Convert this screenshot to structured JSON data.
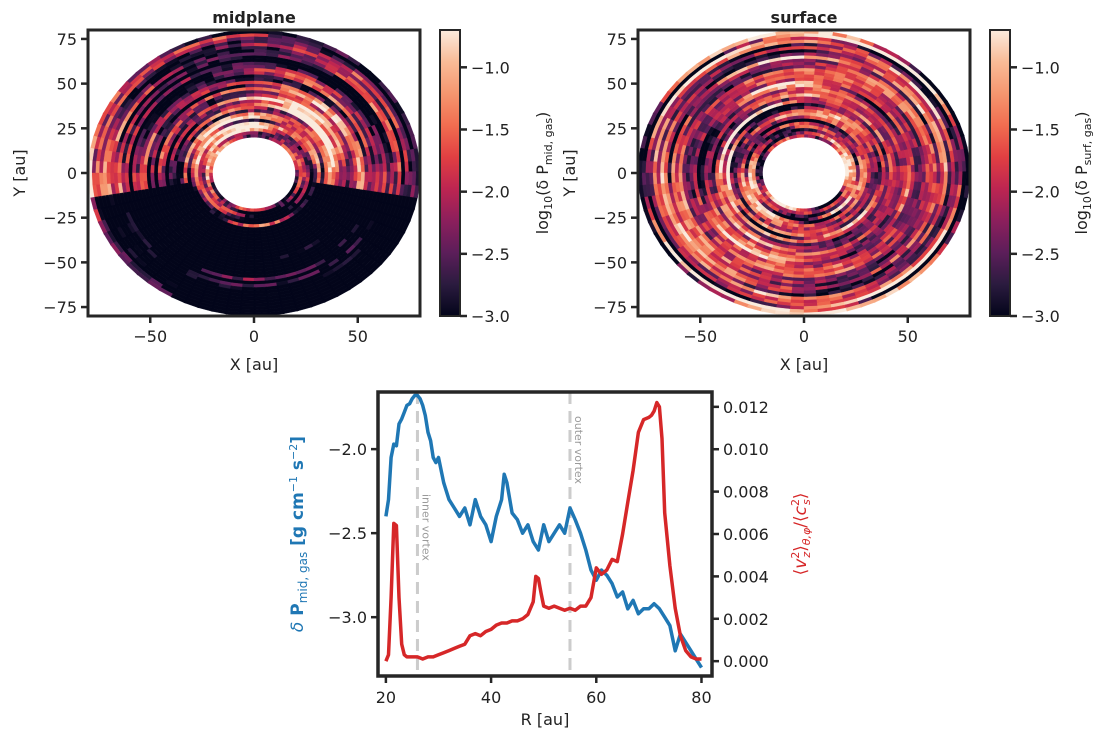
{
  "colors": {
    "blue": "#1f77b4",
    "red": "#d62728",
    "vortex_line": "#cccccc",
    "frame": "#262626",
    "colormap": [
      "#03051a",
      "#2b1b3f",
      "#5c1e5a",
      "#8c1f5c",
      "#bd2551",
      "#e13f42",
      "#f16d50",
      "#f5966f",
      "#f8bb97",
      "#faebdd"
    ]
  },
  "chart_data": [
    {
      "type": "heatmap",
      "title": "midplane",
      "xlabel": "X [au]",
      "ylabel": "Y [au]",
      "xlim": [
        -80,
        80
      ],
      "ylim": [
        -80,
        80
      ],
      "xticks": [
        "−50",
        "0",
        "50"
      ],
      "yticks": [
        "75",
        "50",
        "25",
        "0",
        "−25",
        "−50",
        "−75"
      ],
      "radius_range_au": [
        20,
        80
      ],
      "colorbar": {
        "label_base": "log",
        "label_sub": "10",
        "label_body": "(δ P",
        "label_field_sub": "mid, gas",
        "label_end": ")",
        "range": [
          -3.0,
          -0.7
        ],
        "ticks": [
          "−1.0",
          "−1.5",
          "−2.0",
          "−2.5",
          "−3.0"
        ],
        "tick_values": [
          -1.0,
          -1.5,
          -2.0,
          -2.5,
          -3.0
        ]
      }
    },
    {
      "type": "heatmap",
      "title": "surface",
      "xlabel": "X [au]",
      "ylabel": "Y [au]",
      "xlim": [
        -80,
        80
      ],
      "ylim": [
        -80,
        80
      ],
      "xticks": [
        "−50",
        "0",
        "50"
      ],
      "yticks": [
        "75",
        "50",
        "25",
        "0",
        "−25",
        "−50",
        "−75"
      ],
      "radius_range_au": [
        20,
        80
      ],
      "colorbar": {
        "label_base": "log",
        "label_sub": "10",
        "label_body": "(δ P",
        "label_field_sub": "surf, gas",
        "label_end": ")",
        "range": [
          -3.0,
          -0.7
        ],
        "ticks": [
          "−1.0",
          "−1.5",
          "−2.0",
          "−2.5",
          "−3.0"
        ],
        "tick_values": [
          -1.0,
          -1.5,
          -2.0,
          -2.5,
          -3.0
        ]
      }
    },
    {
      "type": "line",
      "xlabel": "R [au]",
      "xlim": [
        18.5,
        82
      ],
      "xticks": [
        20,
        40,
        60,
        80
      ],
      "y_left": {
        "label_sym": "δ",
        "label_p": "P",
        "label_sub": "mid, gas",
        "label_units": "[g cm",
        "label_exp1": "−1",
        "label_s": "s",
        "label_exp2": "−2",
        "label_end": "]",
        "ylim": [
          -3.35,
          -1.66
        ],
        "ticks": [
          -2.0,
          -2.5,
          -3.0
        ],
        "tick_labels": [
          "−2.0",
          "−2.5",
          "−3.0"
        ]
      },
      "y_right": {
        "label": "⟨v²_z⟩_θ,φ / ⟨c²_s⟩",
        "ylim": [
          -0.0007,
          0.0127
        ],
        "ticks": [
          0.0,
          0.002,
          0.004,
          0.006,
          0.008,
          0.01,
          0.012
        ],
        "tick_labels": [
          "0.000",
          "0.002",
          "0.004",
          "0.006",
          "0.008",
          "0.010",
          "0.012"
        ]
      },
      "vlines": [
        {
          "x": 26,
          "label": "inner vortex"
        },
        {
          "x": 55,
          "label": "outer vortex"
        }
      ],
      "series": [
        {
          "axis": "left",
          "x": [
            20,
            20.5,
            21,
            21.5,
            22,
            22.5,
            23,
            23.5,
            24,
            24.5,
            25,
            25.5,
            26,
            26.5,
            27,
            27.5,
            28,
            28.5,
            29,
            29.5,
            30,
            31,
            32,
            33,
            34,
            35,
            36,
            37,
            38,
            39,
            40,
            41,
            42,
            42.5,
            43,
            44,
            45,
            46,
            47,
            48,
            49,
            50,
            51,
            52,
            53,
            54,
            55,
            56,
            57,
            58,
            59,
            60,
            61,
            62,
            63,
            64,
            65,
            66,
            67,
            68,
            69,
            70,
            71,
            72,
            73,
            74,
            75,
            76,
            77,
            78,
            79,
            80
          ],
          "y": [
            -2.4,
            -2.3,
            -2.05,
            -1.97,
            -1.98,
            -1.85,
            -1.82,
            -1.78,
            -1.74,
            -1.73,
            -1.7,
            -1.68,
            -1.68,
            -1.7,
            -1.74,
            -1.8,
            -1.9,
            -1.95,
            -2.05,
            -2.08,
            -2.05,
            -2.2,
            -2.3,
            -2.35,
            -2.4,
            -2.35,
            -2.45,
            -2.3,
            -2.4,
            -2.45,
            -2.55,
            -2.4,
            -2.3,
            -2.15,
            -2.2,
            -2.38,
            -2.42,
            -2.5,
            -2.45,
            -2.55,
            -2.6,
            -2.45,
            -2.55,
            -2.5,
            -2.45,
            -2.5,
            -2.35,
            -2.42,
            -2.5,
            -2.6,
            -2.72,
            -2.78,
            -2.72,
            -2.75,
            -2.8,
            -2.88,
            -2.85,
            -2.95,
            -2.9,
            -2.98,
            -2.95,
            -2.95,
            -2.92,
            -2.95,
            -3.0,
            -3.05,
            -3.2,
            -3.1,
            -3.15,
            -3.2,
            -3.25,
            -3.3
          ]
        },
        {
          "axis": "right",
          "x": [
            20,
            20.5,
            21,
            21.5,
            22,
            22.5,
            23,
            23.5,
            24,
            25,
            26,
            27,
            28,
            29,
            30,
            31,
            32,
            33,
            34,
            35,
            36,
            37,
            38,
            39,
            40,
            41,
            42,
            43,
            44,
            45,
            46,
            47,
            48,
            48.5,
            49,
            49.5,
            50,
            51,
            52,
            53,
            54,
            55,
            56,
            57,
            58,
            59,
            60,
            61,
            62,
            63,
            64,
            65,
            66,
            67,
            68,
            69,
            70,
            70.5,
            71,
            71.5,
            72,
            72.5,
            73,
            74,
            75,
            76,
            77,
            78,
            79,
            80
          ],
          "y": [
            0.0,
            0.0003,
            0.003,
            0.0065,
            0.0064,
            0.003,
            0.0008,
            0.0003,
            0.0002,
            0.0002,
            0.0002,
            0.0001,
            0.0002,
            0.0002,
            0.0003,
            0.0004,
            0.0005,
            0.0006,
            0.0007,
            0.0008,
            0.0012,
            0.0013,
            0.0012,
            0.0014,
            0.0015,
            0.0017,
            0.0018,
            0.0018,
            0.0019,
            0.0019,
            0.002,
            0.0022,
            0.0028,
            0.004,
            0.0039,
            0.0032,
            0.0026,
            0.0025,
            0.0026,
            0.0025,
            0.0024,
            0.0025,
            0.0024,
            0.0026,
            0.0026,
            0.003,
            0.0044,
            0.0041,
            0.0043,
            0.0048,
            0.0047,
            0.006,
            0.0075,
            0.009,
            0.0108,
            0.0114,
            0.0115,
            0.0116,
            0.0118,
            0.0122,
            0.012,
            0.0105,
            0.007,
            0.0045,
            0.0025,
            0.0012,
            0.0005,
            0.0002,
            0.0001,
            0.0001
          ]
        }
      ]
    }
  ]
}
